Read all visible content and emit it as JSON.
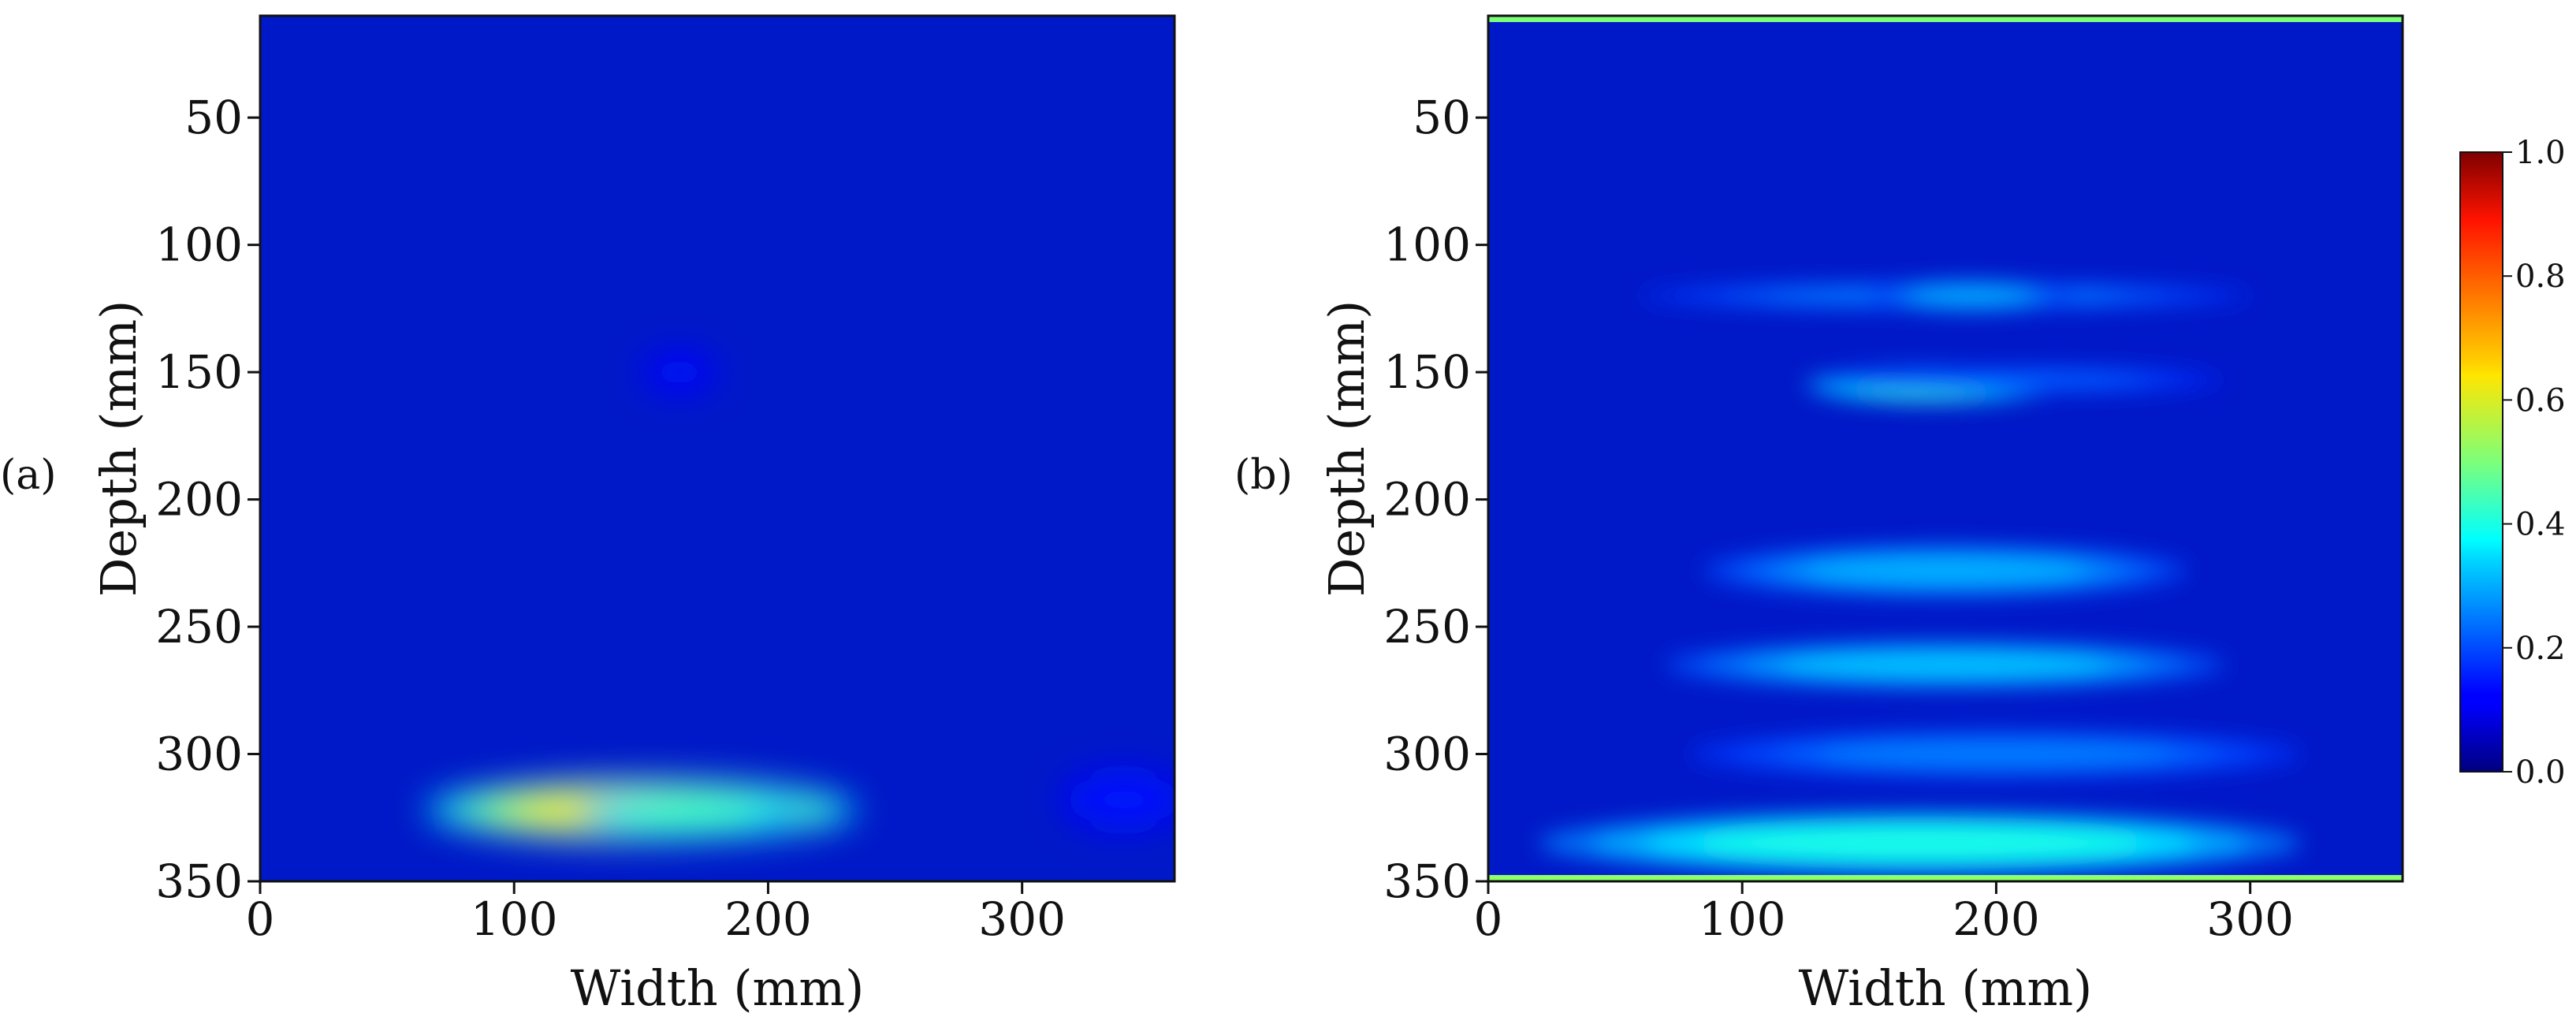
{
  "chart_data": [
    {
      "type": "heatmap",
      "panel_label": "(a)",
      "xlabel": "Width (mm)",
      "ylabel": "Depth (mm)",
      "xlim": [
        0,
        360
      ],
      "ylim": [
        350,
        10
      ],
      "xticks": [
        0,
        100,
        200,
        300
      ],
      "yticks": [
        50,
        100,
        150,
        200,
        250,
        300,
        350
      ],
      "blobs": [
        {
          "x": 150,
          "y": 322,
          "rx": 85,
          "ry": 12,
          "value": 0.55
        },
        {
          "x": 170,
          "y": 323,
          "rx": 45,
          "ry": 8,
          "value": 0.35
        },
        {
          "x": 340,
          "y": 318,
          "rx": 25,
          "ry": 12,
          "value": 0.05
        },
        {
          "x": 165,
          "y": 150,
          "rx": 15,
          "ry": 8,
          "value": 0.04
        }
      ],
      "background_value": 0.1
    },
    {
      "type": "heatmap",
      "panel_label": "(b)",
      "xlabel": "Width (mm)",
      "ylabel": "Depth (mm)",
      "xlim": [
        0,
        360
      ],
      "ylim": [
        350,
        10
      ],
      "xticks": [
        0,
        100,
        200,
        300
      ],
      "yticks": [
        50,
        100,
        150,
        200,
        250,
        300,
        350
      ],
      "blobs": [
        {
          "x": 180,
          "y": 120,
          "rx": 120,
          "ry": 5,
          "value": 0.15
        },
        {
          "x": 190,
          "y": 120,
          "rx": 40,
          "ry": 6,
          "value": 0.2
        },
        {
          "x": 175,
          "y": 155,
          "rx": 50,
          "ry": 7,
          "value": 0.35
        },
        {
          "x": 210,
          "y": 153,
          "rx": 80,
          "ry": 5,
          "value": 0.12
        },
        {
          "x": 180,
          "y": 228,
          "rx": 95,
          "ry": 10,
          "value": 0.2
        },
        {
          "x": 180,
          "y": 265,
          "rx": 110,
          "ry": 9,
          "value": 0.22
        },
        {
          "x": 200,
          "y": 300,
          "rx": 120,
          "ry": 9,
          "value": 0.15
        },
        {
          "x": 170,
          "y": 335,
          "rx": 150,
          "ry": 12,
          "value": 0.3
        }
      ],
      "background_value": 0.1
    }
  ],
  "colorbar": {
    "colormap": "jet",
    "range": [
      0.0,
      1.0
    ],
    "ticks": [
      "0.0",
      "0.2",
      "0.4",
      "0.6",
      "0.8",
      "1.0"
    ]
  }
}
